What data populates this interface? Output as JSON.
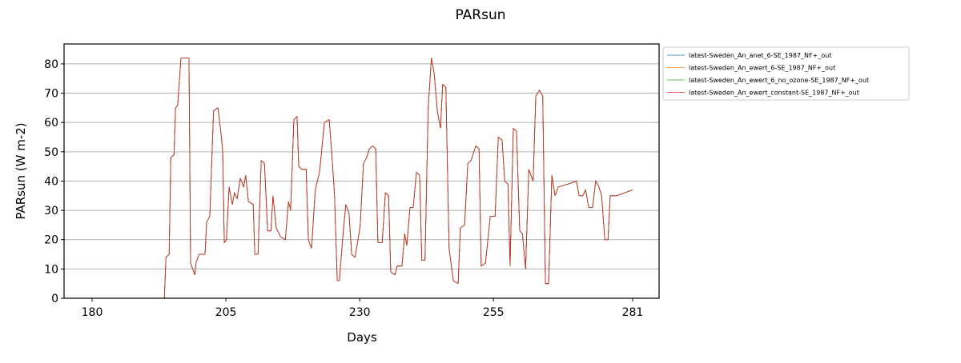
{
  "chart_data": {
    "type": "line",
    "title": "PARsun",
    "x_label": "Days",
    "y_label": "PARsun (W m-2)",
    "x": [
      180,
      193.5,
      193.8,
      194.4,
      194.7,
      195.3,
      195.6,
      196,
      196.6,
      198.1,
      198.4,
      199.2,
      199.4,
      200,
      201.1,
      201.4,
      202,
      202.4,
      202.7,
      203.5,
      204.1,
      204.4,
      204.7,
      205.1,
      205.6,
      206.2,
      206.6,
      207.1,
      207.7,
      208.3,
      208.7,
      209.2,
      210.1,
      210.4,
      211,
      211.6,
      212.2,
      212.8,
      213.4,
      213.8,
      214.4,
      215.2,
      216.1,
      216.7,
      217.1,
      217.7,
      218.3,
      218.6,
      219.2,
      220,
      220.4,
      221,
      221.7,
      222.5,
      223.4,
      224.3,
      224.8,
      225.3,
      225.8,
      226.2,
      226.8,
      227.4,
      228,
      228.5,
      229.1,
      229.7,
      230.1,
      230.7,
      231.3,
      231.8,
      232.4,
      233,
      233.4,
      234.2,
      234.8,
      235.4,
      235.8,
      236.6,
      237,
      237.9,
      238.4,
      238.8,
      239.4,
      240,
      240.6,
      241.2,
      241.6,
      242.2,
      242.8,
      243.4,
      243.9,
      244.5,
      245.1,
      245.5,
      246.1,
      246.7,
      247.5,
      248.4,
      248.8,
      249.6,
      250.2,
      250.8,
      251.7,
      252.3,
      252.7,
      253.5,
      254.4,
      255.3,
      255.9,
      256.6,
      257.1,
      257.7,
      258.1,
      258.7,
      259.3,
      259.9,
      260.4,
      261,
      261.6,
      262.4,
      262.9,
      263.6,
      264.2,
      264.7,
      265.3,
      265.9,
      266.5,
      267.1,
      269,
      270.5,
      271,
      271.7,
      272.2,
      272.8,
      273.5,
      274.1,
      274.7,
      275.2,
      275.8,
      276.4,
      276.8,
      278,
      281
    ],
    "series": [
      {
        "name": "latest-Sweden_An_anet_6-SE_1987_NF+_out",
        "color": "#1f77b4",
        "values": [
          0,
          0,
          14,
          15,
          48,
          49,
          65,
          66,
          82,
          82,
          12,
          8,
          12,
          15,
          15,
          26,
          28,
          49,
          64,
          65,
          56,
          50,
          19,
          20,
          38,
          32,
          36,
          34,
          41,
          38,
          42,
          33,
          32,
          15,
          15,
          47,
          46,
          23,
          23,
          35,
          24,
          21,
          20,
          33,
          30,
          61,
          62,
          45,
          44,
          44,
          20,
          17,
          37,
          43,
          60,
          61,
          49,
          35,
          6,
          6,
          20,
          32,
          29,
          15,
          14,
          20,
          25,
          46,
          48,
          51,
          52,
          51,
          19,
          19,
          36,
          35,
          9,
          8,
          11,
          11,
          22,
          18,
          31,
          31,
          43,
          42,
          13,
          13,
          65,
          82,
          77,
          64,
          58,
          73,
          72,
          17,
          6,
          5,
          24,
          25,
          46,
          47,
          52,
          51,
          11,
          12,
          28,
          28,
          55,
          54,
          40,
          39,
          11,
          58,
          57,
          23,
          22,
          10,
          44,
          40,
          69,
          71,
          69,
          5,
          5,
          42,
          35,
          38,
          39,
          40,
          35,
          35,
          37,
          31,
          31,
          40,
          38,
          35,
          20,
          20,
          35,
          35,
          37
        ]
      },
      {
        "name": "latest-Sweden_An_ewert_6-SE_1987_NF+_out",
        "color": "#ff7f0e",
        "values": [
          0,
          0,
          14,
          15,
          48,
          49,
          65,
          66,
          82,
          82,
          12,
          8,
          12,
          15,
          15,
          26,
          28,
          49,
          64,
          65,
          56,
          50,
          19,
          20,
          38,
          32,
          36,
          34,
          41,
          38,
          42,
          33,
          32,
          15,
          15,
          47,
          46,
          23,
          23,
          35,
          24,
          21,
          20,
          33,
          30,
          61,
          62,
          45,
          44,
          44,
          20,
          17,
          37,
          43,
          60,
          61,
          49,
          35,
          6,
          6,
          20,
          32,
          29,
          15,
          14,
          20,
          25,
          46,
          48,
          51,
          52,
          51,
          19,
          19,
          36,
          35,
          9,
          8,
          11,
          11,
          22,
          18,
          31,
          31,
          43,
          42,
          13,
          13,
          65,
          82,
          77,
          64,
          58,
          73,
          72,
          17,
          6,
          5,
          24,
          25,
          46,
          47,
          52,
          51,
          11,
          12,
          28,
          28,
          55,
          54,
          40,
          39,
          11,
          58,
          57,
          23,
          22,
          10,
          44,
          40,
          69,
          71,
          69,
          5,
          5,
          42,
          35,
          38,
          39,
          40,
          35,
          35,
          37,
          31,
          31,
          40,
          38,
          35,
          20,
          20,
          35,
          35,
          37
        ]
      },
      {
        "name": "latest-Sweden_An_ewert_6_no_ozone-SE_1987_NF+_out",
        "color": "#2ca02c",
        "values": [
          0,
          0,
          14,
          15,
          48,
          49,
          65,
          66,
          82,
          82,
          12,
          8,
          12,
          15,
          15,
          26,
          28,
          49,
          64,
          65,
          56,
          50,
          19,
          20,
          38,
          32,
          36,
          34,
          41,
          38,
          42,
          33,
          32,
          15,
          15,
          47,
          46,
          23,
          23,
          35,
          24,
          21,
          20,
          33,
          30,
          61,
          62,
          45,
          44,
          44,
          20,
          17,
          37,
          43,
          60,
          61,
          49,
          35,
          6,
          6,
          20,
          32,
          29,
          15,
          14,
          20,
          25,
          46,
          48,
          51,
          52,
          51,
          19,
          19,
          36,
          35,
          9,
          8,
          11,
          11,
          22,
          18,
          31,
          31,
          43,
          42,
          13,
          13,
          65,
          82,
          77,
          64,
          58,
          73,
          72,
          17,
          6,
          5,
          24,
          25,
          46,
          47,
          52,
          51,
          11,
          12,
          28,
          28,
          55,
          54,
          40,
          39,
          11,
          58,
          57,
          23,
          22,
          10,
          44,
          40,
          69,
          71,
          69,
          5,
          5,
          42,
          35,
          38,
          39,
          40,
          35,
          35,
          37,
          31,
          31,
          40,
          38,
          35,
          20,
          20,
          35,
          35,
          37
        ]
      },
      {
        "name": "latest-Sweden_An_ewert_constant-SE_1987_NF+_out",
        "color": "#d62728",
        "values": [
          0,
          0,
          14,
          15,
          48,
          49,
          65,
          66,
          82,
          82,
          12,
          8,
          12,
          15,
          15,
          26,
          28,
          49,
          64,
          65,
          56,
          50,
          19,
          20,
          38,
          32,
          36,
          34,
          41,
          38,
          42,
          33,
          32,
          15,
          15,
          47,
          46,
          23,
          23,
          35,
          24,
          21,
          20,
          33,
          30,
          61,
          62,
          45,
          44,
          44,
          20,
          17,
          37,
          43,
          60,
          61,
          49,
          35,
          6,
          6,
          20,
          32,
          29,
          15,
          14,
          20,
          25,
          46,
          48,
          51,
          52,
          51,
          19,
          19,
          36,
          35,
          9,
          8,
          11,
          11,
          22,
          18,
          31,
          31,
          43,
          42,
          13,
          13,
          65,
          82,
          77,
          64,
          58,
          73,
          72,
          17,
          6,
          5,
          24,
          25,
          46,
          47,
          52,
          51,
          11,
          12,
          28,
          28,
          55,
          54,
          40,
          39,
          11,
          58,
          57,
          23,
          22,
          10,
          44,
          40,
          69,
          71,
          69,
          5,
          5,
          42,
          35,
          38,
          39,
          40,
          35,
          35,
          37,
          31,
          31,
          40,
          38,
          35,
          20,
          20,
          35,
          35,
          37
        ]
      }
    ],
    "xlim": [
      174.76,
      285.94
    ],
    "ylim": [
      0,
      86.8
    ],
    "xticks": [
      180,
      205,
      230,
      255,
      281
    ],
    "yticks": [
      0,
      10,
      20,
      30,
      40,
      50,
      60,
      70,
      80
    ],
    "grid": "y",
    "legend": "outside-right"
  }
}
